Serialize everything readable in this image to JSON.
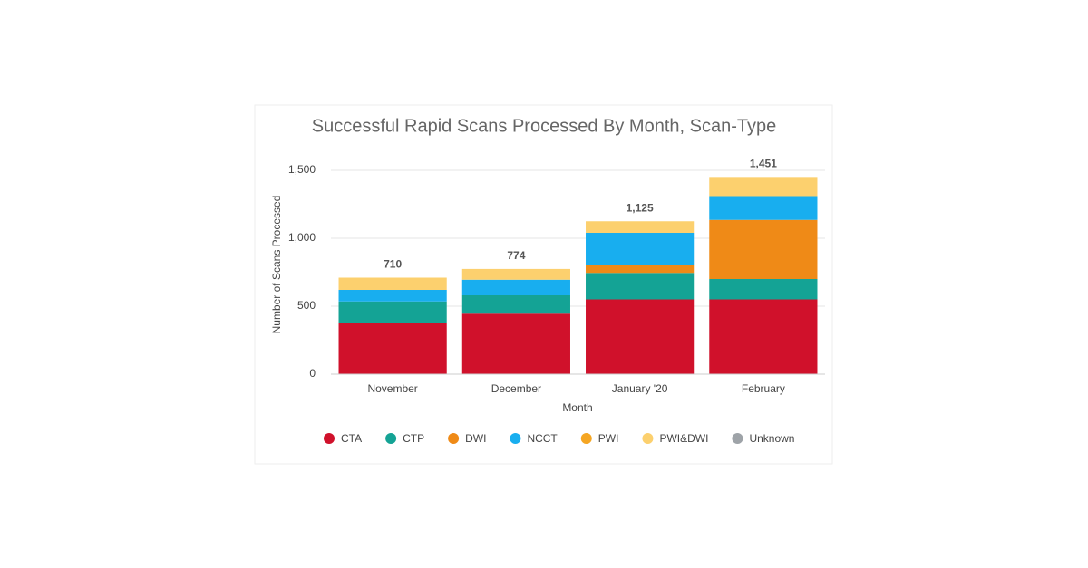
{
  "chart_data": {
    "type": "stacked-bar",
    "title": "Successful Rapid Scans Processed By Month, Scan-Type",
    "x_label": "Month",
    "y_label": "Number of Scans Processed",
    "categories": [
      "November",
      "December",
      "January '20",
      "February"
    ],
    "series": [
      {
        "name": "CTA",
        "color": "#d0112b",
        "values": [
          375,
          445,
          550,
          550
        ]
      },
      {
        "name": "CTP",
        "color": "#14a395",
        "values": [
          160,
          135,
          195,
          150
        ]
      },
      {
        "name": "DWI",
        "color": "#ef8a17",
        "values": [
          0,
          0,
          60,
          435
        ]
      },
      {
        "name": "NCCT",
        "color": "#18aeef",
        "values": [
          85,
          115,
          235,
          175
        ]
      },
      {
        "name": "PWI",
        "color": "#f5a623",
        "values": [
          0,
          0,
          0,
          0
        ]
      },
      {
        "name": "PWI&DWI",
        "color": "#fcd06e",
        "values": [
          90,
          79,
          85,
          141
        ]
      },
      {
        "name": "Unknown",
        "color": "#9ea3a8",
        "values": [
          0,
          0,
          0,
          0
        ]
      }
    ],
    "totals": [
      710,
      774,
      1125,
      1451
    ],
    "total_labels": [
      "710",
      "774",
      "1,125",
      "1,451"
    ],
    "ylim": [
      0,
      1500
    ],
    "yticks": [
      0,
      500,
      {
        "value": 1000,
        "label": "1,000"
      },
      {
        "value": 1500,
        "label": "1,500"
      }
    ],
    "grid": true
  }
}
